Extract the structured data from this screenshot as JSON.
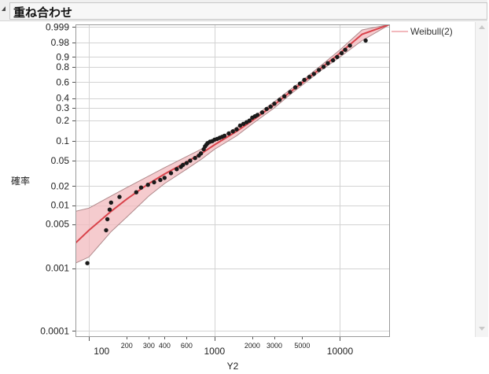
{
  "header": {
    "title": "重ね合わせ"
  },
  "colors": {
    "fit_line": "#d9434b",
    "band_fill": "#f2b9bd",
    "band_stroke": "#b08a8c",
    "points": "#1a1a1a",
    "grid": "#d3d3d3"
  },
  "chart_data": {
    "type": "scatter",
    "title": "重ね合わせ",
    "xlabel": "Y2",
    "ylabel": "確率",
    "x_scale": "log",
    "y_scale": "weibull-probability",
    "xlim": [
      78,
      25000
    ],
    "ylim": [
      8e-05,
      0.9995
    ],
    "x_ticks_major": [
      {
        "value": 100,
        "label": "100"
      },
      {
        "value": 1000,
        "label": "1000"
      },
      {
        "value": 10000,
        "label": "10000"
      }
    ],
    "x_ticks_minor": [
      {
        "value": 200,
        "label": "200"
      },
      {
        "value": 300,
        "label": "300"
      },
      {
        "value": 400,
        "label": "400"
      },
      {
        "value": 600,
        "label": "600"
      },
      {
        "value": 2000,
        "label": "2000"
      },
      {
        "value": 3000,
        "label": "3000"
      },
      {
        "value": 5000,
        "label": "5000"
      }
    ],
    "y_ticks": [
      {
        "value": 0.999,
        "label": "0.999"
      },
      {
        "value": 0.98,
        "label": "0.98"
      },
      {
        "value": 0.9,
        "label": "0.9"
      },
      {
        "value": 0.8,
        "label": "0.8"
      },
      {
        "value": 0.6,
        "label": "0.6"
      },
      {
        "value": 0.4,
        "label": "0.4"
      },
      {
        "value": 0.3,
        "label": "0.3"
      },
      {
        "value": 0.2,
        "label": "0.2"
      },
      {
        "value": 0.1,
        "label": "0.1"
      },
      {
        "value": 0.05,
        "label": "0.05"
      },
      {
        "value": 0.02,
        "label": "0.02"
      },
      {
        "value": 0.01,
        "label": "0.01"
      },
      {
        "value": 0.005,
        "label": "0.005"
      },
      {
        "value": 0.001,
        "label": "0.001"
      },
      {
        "value": 0.0001,
        "label": "0.0001"
      }
    ],
    "grid": true,
    "legend": {
      "placement": "right",
      "entries": [
        "Weibull(2)"
      ]
    },
    "fit": {
      "name": "Weibull(2)",
      "x": [
        78,
        100,
        150,
        200,
        300,
        400,
        600,
        800,
        1000,
        1500,
        2000,
        3000,
        4000,
        5000,
        7000,
        10000,
        15000,
        25000
      ],
      "y": [
        0.0025,
        0.004,
        0.008,
        0.0125,
        0.022,
        0.031,
        0.048,
        0.066,
        0.088,
        0.14,
        0.2,
        0.33,
        0.47,
        0.59,
        0.78,
        0.93,
        0.995,
        0.9995
      ]
    },
    "band_upper": {
      "x": [
        78,
        100,
        150,
        200,
        300,
        400,
        600,
        800,
        1000,
        1500,
        2000,
        3000,
        4000,
        5000,
        7000,
        10000,
        15000,
        25000
      ],
      "y": [
        0.008,
        0.009,
        0.014,
        0.019,
        0.029,
        0.039,
        0.058,
        0.077,
        0.1,
        0.16,
        0.22,
        0.36,
        0.5,
        0.62,
        0.81,
        0.95,
        0.998,
        0.9995
      ]
    },
    "band_lower": {
      "x": [
        78,
        100,
        150,
        200,
        300,
        400,
        600,
        800,
        1000,
        1500,
        2000,
        3000,
        4000,
        5000,
        7000,
        10000,
        15000,
        25000
      ],
      "y": [
        0.0012,
        0.0015,
        0.0038,
        0.0065,
        0.014,
        0.022,
        0.037,
        0.054,
        0.075,
        0.12,
        0.18,
        0.3,
        0.44,
        0.56,
        0.75,
        0.9,
        0.985,
        0.9995
      ]
    },
    "points": {
      "x": [
        97,
        137,
        140,
        146,
        150,
        175,
        238,
        260,
        295,
        330,
        370,
        400,
        450,
        500,
        540,
        560,
        600,
        640,
        700,
        750,
        780,
        820,
        840,
        860,
        880,
        920,
        960,
        1000,
        1050,
        1100,
        1150,
        1200,
        1300,
        1400,
        1500,
        1600,
        1700,
        1800,
        1900,
        2000,
        2100,
        2200,
        2400,
        2600,
        2800,
        3000,
        3300,
        3600,
        4000,
        4400,
        4800,
        5200,
        5700,
        6200,
        6800,
        7400,
        8000,
        8800,
        9500,
        10300,
        11000,
        12000,
        16000
      ],
      "y": [
        0.0012,
        0.004,
        0.006,
        0.0085,
        0.011,
        0.0135,
        0.016,
        0.019,
        0.021,
        0.023,
        0.025,
        0.027,
        0.032,
        0.037,
        0.04,
        0.043,
        0.046,
        0.05,
        0.055,
        0.06,
        0.065,
        0.075,
        0.083,
        0.088,
        0.093,
        0.098,
        0.1,
        0.105,
        0.108,
        0.112,
        0.116,
        0.12,
        0.13,
        0.14,
        0.15,
        0.17,
        0.18,
        0.19,
        0.2,
        0.22,
        0.23,
        0.24,
        0.26,
        0.29,
        0.31,
        0.34,
        0.38,
        0.42,
        0.47,
        0.53,
        0.58,
        0.63,
        0.67,
        0.71,
        0.76,
        0.8,
        0.84,
        0.87,
        0.9,
        0.93,
        0.95,
        0.97,
        0.985
      ]
    }
  }
}
